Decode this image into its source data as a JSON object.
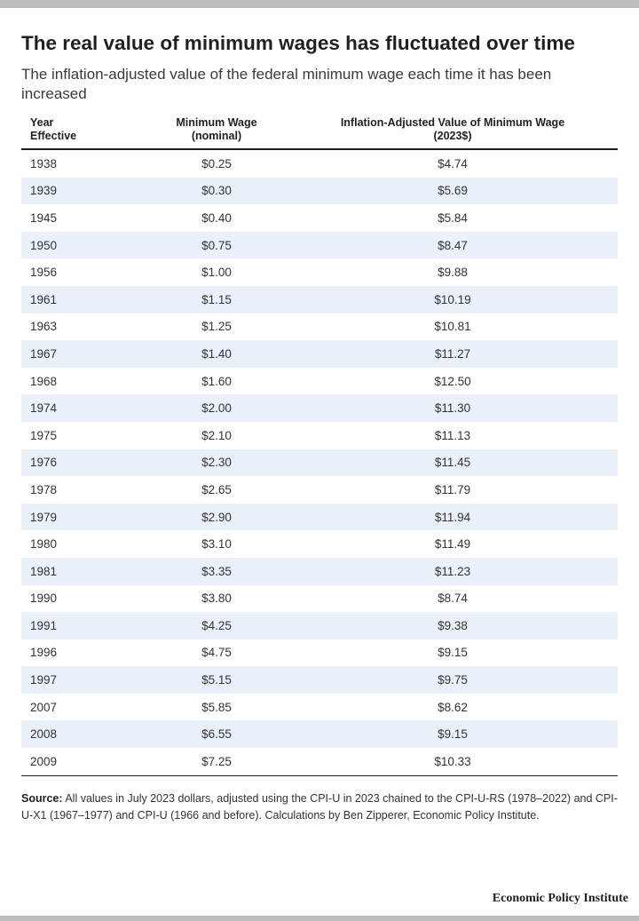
{
  "title": "The real value of minimum wages has fluctuated over time",
  "subtitle": "The inflation-adjusted value of the federal minimum wage each time it has been increased",
  "columns": {
    "year": "Year\nEffective",
    "nominal": "Minimum Wage\n(nominal)",
    "adjusted": "Inflation-Adjusted Value of Minimum Wage\n(2023$)"
  },
  "source_label": "Source:",
  "source_text": " All values in July 2023 dollars, adjusted using the CPI-U in 2023 chained to the CPI-U-RS (1978–2022) and CPI-U-X1 (1967–1977) and CPI-U (1966 and before). Calculations by Ben Zipperer, Economic Policy Institute.",
  "brand": "Economic Policy Institute",
  "colors": {
    "stripe": "#eaf1fa",
    "text": "#231f20",
    "rule": "#231f20"
  },
  "chart_data": {
    "type": "table",
    "columns": [
      "Year Effective",
      "Minimum Wage (nominal)",
      "Inflation-Adjusted Value of Minimum Wage (2023$)"
    ],
    "rows": [
      [
        "1938",
        "$0.25",
        "$4.74"
      ],
      [
        "1939",
        "$0.30",
        "$5.69"
      ],
      [
        "1945",
        "$0.40",
        "$5.84"
      ],
      [
        "1950",
        "$0.75",
        "$8.47"
      ],
      [
        "1956",
        "$1.00",
        "$9.88"
      ],
      [
        "1961",
        "$1.15",
        "$10.19"
      ],
      [
        "1963",
        "$1.25",
        "$10.81"
      ],
      [
        "1967",
        "$1.40",
        "$11.27"
      ],
      [
        "1968",
        "$1.60",
        "$12.50"
      ],
      [
        "1974",
        "$2.00",
        "$11.30"
      ],
      [
        "1975",
        "$2.10",
        "$11.13"
      ],
      [
        "1976",
        "$2.30",
        "$11.45"
      ],
      [
        "1978",
        "$2.65",
        "$11.79"
      ],
      [
        "1979",
        "$2.90",
        "$11.94"
      ],
      [
        "1980",
        "$3.10",
        "$11.49"
      ],
      [
        "1981",
        "$3.35",
        "$11.23"
      ],
      [
        "1990",
        "$3.80",
        "$8.74"
      ],
      [
        "1991",
        "$4.25",
        "$9.38"
      ],
      [
        "1996",
        "$4.75",
        "$9.15"
      ],
      [
        "1997",
        "$5.15",
        "$9.75"
      ],
      [
        "2007",
        "$5.85",
        "$8.62"
      ],
      [
        "2008",
        "$6.55",
        "$9.15"
      ],
      [
        "2009",
        "$7.25",
        "$10.33"
      ]
    ]
  }
}
